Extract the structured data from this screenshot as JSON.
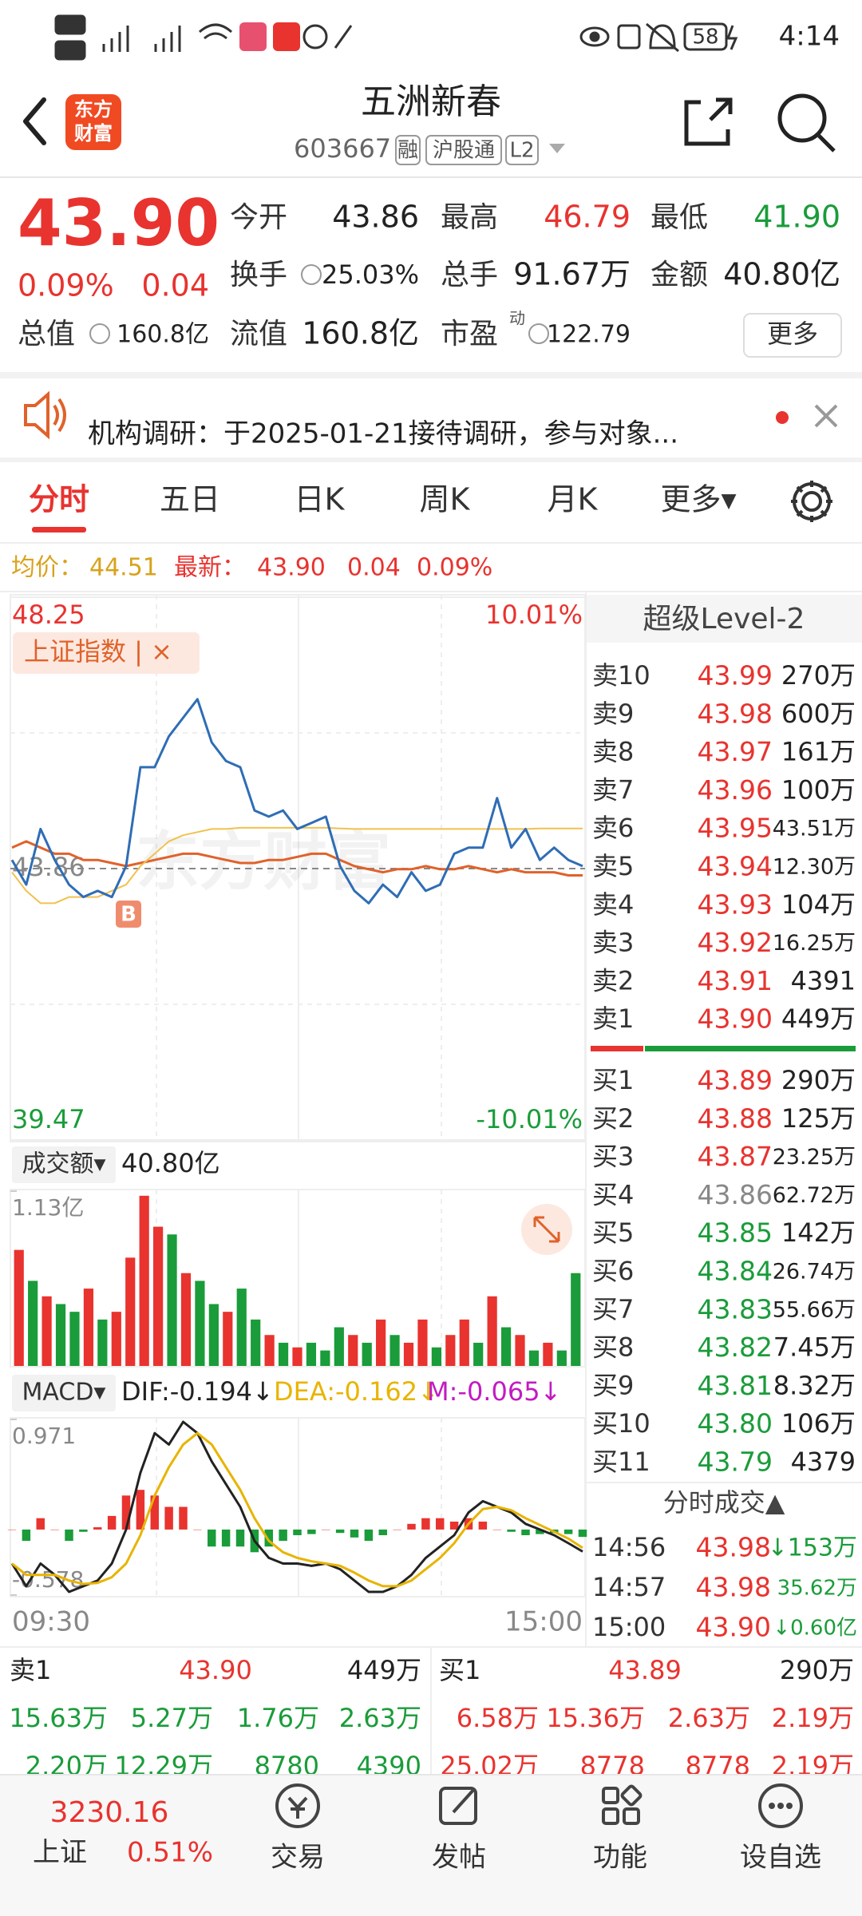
{
  "status_bar": {
    "time": "4:14",
    "battery": "58"
  },
  "header": {
    "logo": [
      "东方",
      "财富"
    ],
    "title": "五洲新春",
    "code": "603667",
    "badges": [
      "融",
      "沪股通",
      "L2"
    ]
  },
  "quote": {
    "price": "43.90",
    "change_pct": "0.09%",
    "change": "0.04",
    "fields": [
      {
        "label": "今开",
        "value": "43.86"
      },
      {
        "label": "最高",
        "value": "46.79",
        "color": "#e8332f"
      },
      {
        "label": "最低",
        "value": "41.90",
        "color": "#1a9c3a"
      },
      {
        "label": "换手",
        "value": "25.03%"
      },
      {
        "label": "总手",
        "value": "91.67万"
      },
      {
        "label": "金额",
        "value": "40.80亿"
      },
      {
        "label": "总值",
        "value": "160.8亿"
      },
      {
        "label": "流值",
        "value": "160.8亿"
      },
      {
        "label": "市盈",
        "sup": "动",
        "value": "122.79"
      }
    ],
    "more": "更多"
  },
  "notice": "机构调研：于2025-01-21接待调研，参与对象...",
  "tabs": [
    "分时",
    "五日",
    "日K",
    "周K",
    "月K",
    "更多▾"
  ],
  "avg_row": {
    "avg_label": "均价：",
    "avg": "44.51",
    "last_label": "最新：",
    "last": "43.90",
    "change": "0.04",
    "pct": "0.09%"
  },
  "chart_data": [
    {
      "type": "line",
      "watermark": "东方财富",
      "marker": "B",
      "ylim": [
        39.47,
        48.25
      ],
      "yticks": [
        48.25,
        43.86,
        39.47
      ],
      "y2lim": [
        -10.01,
        10.01
      ],
      "y2ticks": [
        {
          "value": 10.01,
          "label": "10.01%"
        },
        {
          "value": -10.01,
          "label": "-10.01%"
        }
      ],
      "series": [
        {
          "color": "#2f6db5",
          "values": [
            44.0,
            43.6,
            44.5,
            44.0,
            43.6,
            43.4,
            43.5,
            43.4,
            43.9,
            45.5,
            45.5,
            46.0,
            46.3,
            46.6,
            45.9,
            45.6,
            45.5,
            44.8,
            44.7,
            44.8,
            44.5,
            44.6,
            44.7,
            43.9,
            43.5,
            43.3,
            43.6,
            43.4,
            43.8,
            43.5,
            43.6,
            44.1,
            44.2,
            44.2,
            45.0,
            44.2,
            44.5,
            44.0,
            44.2,
            44.0,
            43.9
          ]
        },
        {
          "color": "#f2c14e",
          "values": [
            43.8,
            43.5,
            43.3,
            43.3,
            43.4,
            43.4,
            43.4,
            43.5,
            43.6,
            43.9,
            44.1,
            44.3,
            44.4,
            44.45,
            44.5,
            44.5,
            44.52,
            44.52,
            44.52,
            44.52,
            44.52,
            44.52,
            44.52,
            44.51,
            44.5,
            44.5,
            44.5,
            44.5,
            44.5,
            44.5,
            44.5,
            44.5,
            44.5,
            44.5,
            44.5,
            44.5,
            44.5,
            44.51,
            44.51,
            44.51,
            44.51
          ]
        },
        {
          "name": "上证指数 | ×",
          "color": "#e0622a",
          "values": [
            44.2,
            44.3,
            44.2,
            44.1,
            44.1,
            44.0,
            44.0,
            43.95,
            43.9,
            43.95,
            44.0,
            44.05,
            44.1,
            44.1,
            44.05,
            44.0,
            43.95,
            43.95,
            44.0,
            44.0,
            44.05,
            44.1,
            44.1,
            44.0,
            43.9,
            43.85,
            43.8,
            43.85,
            43.85,
            43.9,
            43.85,
            43.85,
            43.9,
            43.85,
            43.8,
            43.85,
            43.8,
            43.8,
            43.8,
            43.75,
            43.75
          ]
        }
      ]
    },
    {
      "type": "bar",
      "selector": "成交额▾",
      "total": "40.80亿",
      "ylim": [
        0,
        1.13
      ],
      "yticks": [
        {
          "value": 1.13,
          "label": "1.13亿"
        }
      ],
      "values": [
        0.75,
        0.55,
        0.45,
        0.4,
        0.35,
        0.5,
        0.3,
        0.35,
        0.7,
        1.1,
        0.9,
        0.85,
        0.6,
        0.55,
        0.4,
        0.35,
        0.5,
        0.3,
        0.2,
        0.15,
        0.12,
        0.15,
        0.1,
        0.25,
        0.2,
        0.15,
        0.3,
        0.2,
        0.15,
        0.3,
        0.12,
        0.2,
        0.3,
        0.15,
        0.45,
        0.25,
        0.2,
        0.1,
        0.15,
        0.1,
        0.6
      ],
      "colors": [
        "#e8332f",
        "#1a9c3a",
        "#e8332f",
        "#1a9c3a",
        "#1a9c3a",
        "#e8332f",
        "#1a9c3a",
        "#e8332f",
        "#e8332f",
        "#e8332f",
        "#e8332f",
        "#1a9c3a",
        "#e8332f",
        "#1a9c3a",
        "#1a9c3a",
        "#e8332f",
        "#1a9c3a",
        "#1a9c3a",
        "#e8332f",
        "#1a9c3a",
        "#e8332f",
        "#1a9c3a",
        "#1a9c3a",
        "#1a9c3a",
        "#e8332f",
        "#1a9c3a",
        "#e8332f",
        "#1a9c3a",
        "#e8332f",
        "#e8332f",
        "#1a9c3a",
        "#e8332f",
        "#e8332f",
        "#1a9c3a",
        "#e8332f",
        "#1a9c3a",
        "#e8332f",
        "#1a9c3a",
        "#e8332f",
        "#1a9c3a",
        "#1a9c3a"
      ]
    },
    {
      "type": "line",
      "selector": "MACD▾",
      "x_labels": [
        "09:30",
        "15:00"
      ],
      "ylim": [
        -0.578,
        0.971
      ],
      "yticks": [
        0.971,
        -0.578
      ],
      "series": [
        {
          "name": "DIF:-0.194↓",
          "color": "#222222",
          "values": [
            -0.3,
            -0.5,
            -0.3,
            -0.4,
            -0.55,
            -0.5,
            -0.45,
            -0.3,
            0.0,
            0.5,
            0.85,
            0.75,
            0.95,
            0.85,
            0.6,
            0.4,
            0.2,
            -0.1,
            -0.25,
            -0.3,
            -0.3,
            -0.32,
            -0.3,
            -0.35,
            -0.45,
            -0.55,
            -0.55,
            -0.5,
            -0.4,
            -0.25,
            -0.15,
            -0.05,
            0.15,
            0.25,
            0.2,
            0.15,
            0.05,
            0.0,
            -0.05,
            -0.12,
            -0.194
          ]
        },
        {
          "name": "DEA:-0.162↓",
          "color": "#e8b400",
          "values": [
            -0.3,
            -0.4,
            -0.4,
            -0.4,
            -0.45,
            -0.48,
            -0.47,
            -0.42,
            -0.3,
            -0.05,
            0.3,
            0.55,
            0.75,
            0.85,
            0.75,
            0.55,
            0.35,
            0.1,
            -0.1,
            -0.2,
            -0.25,
            -0.28,
            -0.3,
            -0.32,
            -0.38,
            -0.45,
            -0.5,
            -0.5,
            -0.45,
            -0.35,
            -0.25,
            -0.12,
            0.05,
            0.18,
            0.2,
            0.17,
            0.1,
            0.04,
            -0.02,
            -0.08,
            -0.162
          ]
        },
        {
          "name": "M:-0.065↓",
          "color": "#c21bc2",
          "values": [
            0,
            -0.1,
            0.1,
            0,
            -0.1,
            -0.02,
            0.02,
            0.12,
            0.3,
            0.35,
            0.3,
            0.2,
            0.2,
            0,
            -0.15,
            -0.15,
            -0.15,
            -0.2,
            -0.15,
            -0.1,
            -0.05,
            -0.04,
            0,
            -0.03,
            -0.07,
            -0.1,
            -0.05,
            0,
            0.05,
            0.1,
            0.1,
            0.07,
            0.1,
            0.07,
            0,
            -0.02,
            -0.05,
            -0.04,
            -0.03,
            -0.04,
            -0.065
          ]
        }
      ]
    }
  ],
  "level2": {
    "title": "超级Level-2",
    "asks": [
      {
        "label": "卖10",
        "price": "43.99",
        "volume": "270万"
      },
      {
        "label": "卖9",
        "price": "43.98",
        "volume": "600万"
      },
      {
        "label": "卖8",
        "price": "43.97",
        "volume": "161万"
      },
      {
        "label": "卖7",
        "price": "43.96",
        "volume": "100万"
      },
      {
        "label": "卖6",
        "price": "43.95",
        "volume": "43.51万"
      },
      {
        "label": "卖5",
        "price": "43.94",
        "volume": "12.30万"
      },
      {
        "label": "卖4",
        "price": "43.93",
        "volume": "104万"
      },
      {
        "label": "卖3",
        "price": "43.92",
        "volume": "16.25万"
      },
      {
        "label": "卖2",
        "price": "43.91",
        "volume": "4391"
      },
      {
        "label": "卖1",
        "price": "43.90",
        "volume": "449万"
      }
    ],
    "bids": [
      {
        "label": "买1",
        "price": "43.89",
        "volume": "290万"
      },
      {
        "label": "买2",
        "price": "43.88",
        "volume": "125万"
      },
      {
        "label": "买3",
        "price": "43.87",
        "volume": "23.25万"
      },
      {
        "label": "买4",
        "price": "43.86",
        "volume": "62.72万"
      },
      {
        "label": "买5",
        "price": "43.85",
        "volume": "142万"
      },
      {
        "label": "买6",
        "price": "43.84",
        "volume": "26.74万"
      },
      {
        "label": "买7",
        "price": "43.83",
        "volume": "55.66万"
      },
      {
        "label": "买8",
        "price": "43.82",
        "volume": "7.45万"
      },
      {
        "label": "买9",
        "price": "43.81",
        "volume": "8.32万"
      },
      {
        "label": "买10",
        "price": "43.80",
        "volume": "106万"
      },
      {
        "label": "买11",
        "price": "43.79",
        "volume": "4379"
      }
    ],
    "trades_title": "分时成交▲",
    "trades": [
      {
        "time": "14:56",
        "price": "43.98",
        "volume": "↓153万"
      },
      {
        "time": "14:57",
        "price": "43.98",
        "volume": "35.62万"
      },
      {
        "time": "15:00",
        "price": "43.90",
        "volume": "↓0.60亿"
      }
    ]
  },
  "bottom_book": {
    "rows": [
      [
        "卖1",
        "43.90",
        "449万",
        "买1",
        "43.89",
        "290万"
      ],
      [
        "15.63万",
        "5.27万",
        "1.76万",
        "2.63万",
        "6.58万",
        "15.36万",
        "2.63万",
        "2.19万"
      ],
      [
        "2.20万",
        "12.29万",
        "8780",
        "4390",
        "25.02万",
        "8778",
        "8778",
        "2.19万"
      ]
    ]
  },
  "nav": {
    "index_value": "3230.16",
    "index_name": "上证",
    "index_pct": "0.51%",
    "items": [
      "交易",
      "发帖",
      "功能",
      "设自选"
    ]
  }
}
